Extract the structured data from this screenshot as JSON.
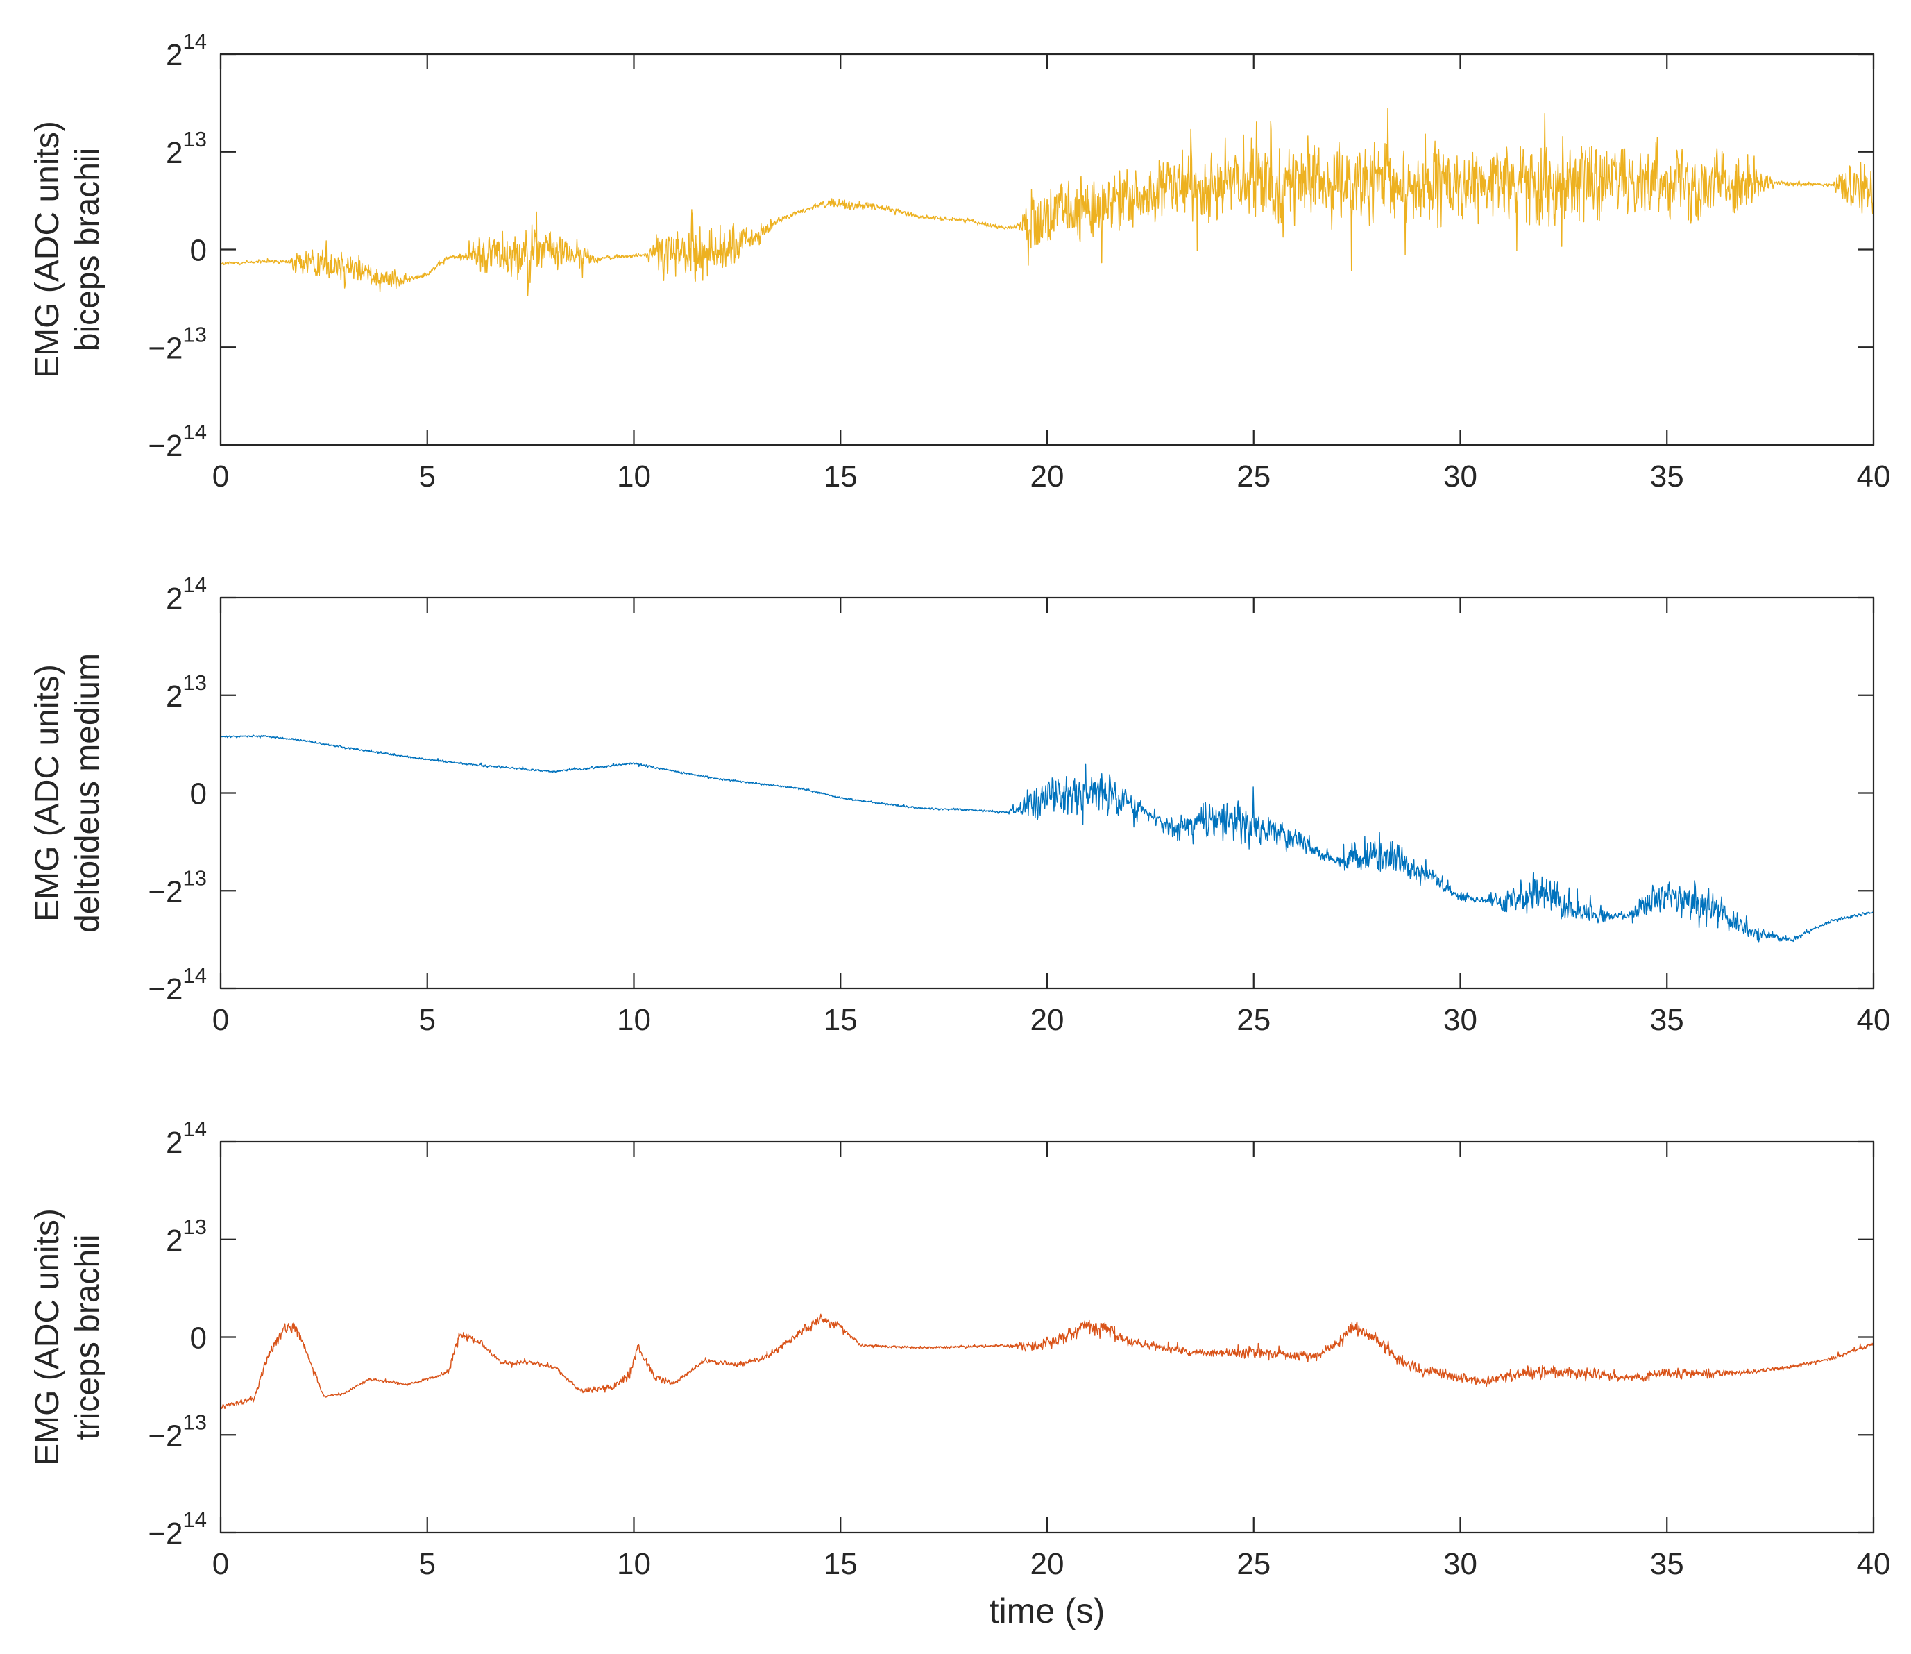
{
  "chart_data": [
    {
      "type": "line",
      "color": "#EDB120",
      "ylabel_line1": "EMG (ADC units)",
      "ylabel_line2": "biceps brachii",
      "xlabel": "",
      "xlim": [
        0,
        40
      ],
      "ylim": [
        -16384,
        16384
      ],
      "xticks": [
        "0",
        "5",
        "10",
        "15",
        "20",
        "25",
        "30",
        "35",
        "40"
      ],
      "yticks": [
        {
          "value": 16384,
          "base": "2",
          "exp": "14"
        },
        {
          "value": 8192,
          "base": "2",
          "exp": "13"
        },
        {
          "value": 0,
          "base": "0",
          "exp": ""
        },
        {
          "value": -8192,
          "base": "−2",
          "exp": "13"
        },
        {
          "value": -16384,
          "base": "−2",
          "exp": "14"
        }
      ],
      "series": [
        {
          "baseline": [
            [
              0,
              -1200
            ],
            [
              1,
              -1000
            ],
            [
              2,
              -1100
            ],
            [
              3,
              -1200
            ],
            [
              4,
              -2400
            ],
            [
              4.5,
              -2600
            ],
            [
              5,
              -2000
            ],
            [
              5.5,
              -700
            ],
            [
              6,
              -500
            ],
            [
              7,
              -200
            ],
            [
              8,
              0
            ],
            [
              9,
              -800
            ],
            [
              10,
              -500
            ],
            [
              11,
              -300
            ],
            [
              12,
              -200
            ],
            [
              13,
              1000
            ],
            [
              13.5,
              2500
            ],
            [
              14.5,
              3800
            ],
            [
              15,
              3800
            ],
            [
              16,
              3500
            ],
            [
              17,
              2700
            ],
            [
              18,
              2500
            ],
            [
              19,
              1800
            ],
            [
              20,
              2500
            ],
            [
              22,
              4200
            ],
            [
              24,
              5600
            ],
            [
              26,
              5700
            ],
            [
              28,
              5200
            ],
            [
              30,
              5200
            ],
            [
              32,
              5800
            ],
            [
              34,
              5800
            ],
            [
              35,
              6000
            ],
            [
              36,
              5700
            ],
            [
              37,
              5600
            ],
            [
              38,
              5500
            ],
            [
              39,
              5400
            ],
            [
              40,
              5300
            ]
          ],
          "amplitude": [
            [
              0,
              300
            ],
            [
              1.6,
              300
            ],
            [
              1.8,
              2000
            ],
            [
              3,
              3000
            ],
            [
              4,
              1800
            ],
            [
              4.7,
              400
            ],
            [
              5.9,
              400
            ],
            [
              6.2,
              3000
            ],
            [
              7.5,
              4000
            ],
            [
              8.5,
              2500
            ],
            [
              9.2,
              300
            ],
            [
              10.3,
              300
            ],
            [
              10.6,
              3500
            ],
            [
              11.5,
              4500
            ],
            [
              12.5,
              3000
            ],
            [
              13.5,
              400
            ],
            [
              14,
              300
            ],
            [
              15,
              800
            ],
            [
              17,
              300
            ],
            [
              19.3,
              300
            ],
            [
              19.6,
              4000
            ],
            [
              21,
              5500
            ],
            [
              22.5,
              4500
            ],
            [
              23.5,
              5000
            ],
            [
              25,
              6000
            ],
            [
              27,
              5000
            ],
            [
              28.5,
              6500
            ],
            [
              30,
              5000
            ],
            [
              31,
              5200
            ],
            [
              32.5,
              6800
            ],
            [
              34,
              4500
            ],
            [
              35.5,
              5500
            ],
            [
              37,
              4000
            ],
            [
              37.6,
              400
            ],
            [
              39,
              300
            ],
            [
              39.3,
              3500
            ],
            [
              40,
              4000
            ]
          ]
        }
      ]
    },
    {
      "type": "line",
      "color": "#0072BD",
      "ylabel_line1": "EMG (ADC units)",
      "ylabel_line2": "deltoideus medium",
      "xlabel": "",
      "xlim": [
        0,
        40
      ],
      "ylim": [
        -16384,
        16384
      ],
      "xticks": [
        "0",
        "5",
        "10",
        "15",
        "20",
        "25",
        "30",
        "35",
        "40"
      ],
      "yticks": [
        {
          "value": 16384,
          "base": "2",
          "exp": "14"
        },
        {
          "value": 8192,
          "base": "2",
          "exp": "13"
        },
        {
          "value": 0,
          "base": "0",
          "exp": ""
        },
        {
          "value": -8192,
          "base": "−2",
          "exp": "13"
        },
        {
          "value": -16384,
          "base": "−2",
          "exp": "14"
        }
      ],
      "series": [
        {
          "baseline": [
            [
              0,
              4700
            ],
            [
              1,
              4800
            ],
            [
              2,
              4400
            ],
            [
              3,
              3800
            ],
            [
              4,
              3300
            ],
            [
              5,
              2800
            ],
            [
              6,
              2400
            ],
            [
              7,
              2100
            ],
            [
              8,
              1800
            ],
            [
              9,
              2100
            ],
            [
              10,
              2500
            ],
            [
              11,
              1800
            ],
            [
              12,
              1200
            ],
            [
              13,
              800
            ],
            [
              14,
              400
            ],
            [
              15,
              -400
            ],
            [
              16,
              -900
            ],
            [
              17,
              -1300
            ],
            [
              18,
              -1400
            ],
            [
              19,
              -1600
            ],
            [
              20,
              -300
            ],
            [
              21,
              200
            ],
            [
              22,
              -800
            ],
            [
              23,
              -3000
            ],
            [
              24,
              -2300
            ],
            [
              25,
              -2800
            ],
            [
              26,
              -3900
            ],
            [
              27,
              -5700
            ],
            [
              28,
              -5300
            ],
            [
              29,
              -6400
            ],
            [
              30,
              -8700
            ],
            [
              31,
              -9200
            ],
            [
              32,
              -8400
            ],
            [
              33,
              -10000
            ],
            [
              34,
              -10400
            ],
            [
              35,
              -8400
            ],
            [
              36,
              -9600
            ],
            [
              37,
              -11600
            ],
            [
              38,
              -12300
            ],
            [
              39,
              -10700
            ],
            [
              40,
              -10000
            ]
          ],
          "amplitude": [
            [
              0,
              150
            ],
            [
              19,
              150
            ],
            [
              19.5,
              2000
            ],
            [
              21,
              3500
            ],
            [
              22,
              1800
            ],
            [
              22.5,
              500
            ],
            [
              23,
              1800
            ],
            [
              24.5,
              3000
            ],
            [
              26,
              1500
            ],
            [
              27,
              500
            ],
            [
              27.3,
              1800
            ],
            [
              28,
              3000
            ],
            [
              29,
              1500
            ],
            [
              30.5,
              400
            ],
            [
              31,
              1500
            ],
            [
              32,
              3300
            ],
            [
              33,
              1500
            ],
            [
              34,
              300
            ],
            [
              34.5,
              1800
            ],
            [
              35.5,
              3300
            ],
            [
              37,
              1200
            ],
            [
              37.5,
              600
            ],
            [
              38.5,
              300
            ],
            [
              40,
              200
            ]
          ]
        }
      ]
    },
    {
      "type": "line",
      "color": "#D95319",
      "ylabel_line1": "EMG (ADC units)",
      "ylabel_line2": "triceps brachii",
      "xlabel": "time (s)",
      "xlim": [
        0,
        40
      ],
      "ylim": [
        -16384,
        16384
      ],
      "xticks": [
        "0",
        "5",
        "10",
        "15",
        "20",
        "25",
        "30",
        "35",
        "40"
      ],
      "yticks": [
        {
          "value": 16384,
          "base": "2",
          "exp": "14"
        },
        {
          "value": 8192,
          "base": "2",
          "exp": "13"
        },
        {
          "value": 0,
          "base": "0",
          "exp": ""
        },
        {
          "value": -8192,
          "base": "−2",
          "exp": "13"
        },
        {
          "value": -16384,
          "base": "−2",
          "exp": "14"
        }
      ],
      "series": [
        {
          "baseline": [
            [
              0,
              -5800
            ],
            [
              0.8,
              -5200
            ],
            [
              1.1,
              -2000
            ],
            [
              1.5,
              600
            ],
            [
              1.8,
              800
            ],
            [
              2.1,
              -1500
            ],
            [
              2.5,
              -5000
            ],
            [
              3,
              -4700
            ],
            [
              3.6,
              -3500
            ],
            [
              4.5,
              -4000
            ],
            [
              5.5,
              -3000
            ],
            [
              5.8,
              400
            ],
            [
              6.3,
              -500
            ],
            [
              6.8,
              -2200
            ],
            [
              7.5,
              -2100
            ],
            [
              8.1,
              -2600
            ],
            [
              8.7,
              -4500
            ],
            [
              9.5,
              -4200
            ],
            [
              9.9,
              -3100
            ],
            [
              10.1,
              -800
            ],
            [
              10.5,
              -3400
            ],
            [
              11,
              -3800
            ],
            [
              11.7,
              -2000
            ],
            [
              12.5,
              -2300
            ],
            [
              13.2,
              -1700
            ],
            [
              14,
              300
            ],
            [
              14.5,
              1500
            ],
            [
              15,
              900
            ],
            [
              15.5,
              -700
            ],
            [
              17,
              -900
            ],
            [
              19,
              -700
            ],
            [
              20,
              -700
            ],
            [
              21,
              1000
            ],
            [
              21.5,
              700
            ],
            [
              22,
              -400
            ],
            [
              23.5,
              -1300
            ],
            [
              25,
              -1300
            ],
            [
              26.5,
              -1600
            ],
            [
              27,
              -600
            ],
            [
              27.4,
              900
            ],
            [
              28,
              -200
            ],
            [
              28.5,
              -1900
            ],
            [
              29,
              -2700
            ],
            [
              30.5,
              -3700
            ],
            [
              31,
              -3300
            ],
            [
              32,
              -2900
            ],
            [
              33,
              -3100
            ],
            [
              34,
              -3400
            ],
            [
              35,
              -3000
            ],
            [
              36,
              -3000
            ],
            [
              37,
              -2900
            ],
            [
              38,
              -2500
            ],
            [
              39,
              -1800
            ],
            [
              40,
              -500
            ]
          ],
          "amplitude": [
            [
              0,
              300
            ],
            [
              0.8,
              400
            ],
            [
              1.2,
              1000
            ],
            [
              2,
              800
            ],
            [
              2.5,
              200
            ],
            [
              5.3,
              200
            ],
            [
              5.7,
              800
            ],
            [
              6.5,
              300
            ],
            [
              8.5,
              300
            ],
            [
              10,
              700
            ],
            [
              11,
              300
            ],
            [
              13.5,
              400
            ],
            [
              14.5,
              800
            ],
            [
              15.5,
              200
            ],
            [
              19,
              200
            ],
            [
              19.5,
              800
            ],
            [
              21,
              1600
            ],
            [
              22,
              800
            ],
            [
              23,
              500
            ],
            [
              25,
              900
            ],
            [
              27,
              600
            ],
            [
              27.5,
              1000
            ],
            [
              29,
              900
            ],
            [
              30.5,
              600
            ],
            [
              31,
              800
            ],
            [
              32,
              1000
            ],
            [
              34,
              600
            ],
            [
              35,
              900
            ],
            [
              37,
              400
            ],
            [
              38,
              300
            ],
            [
              40,
              300
            ]
          ]
        }
      ]
    }
  ]
}
